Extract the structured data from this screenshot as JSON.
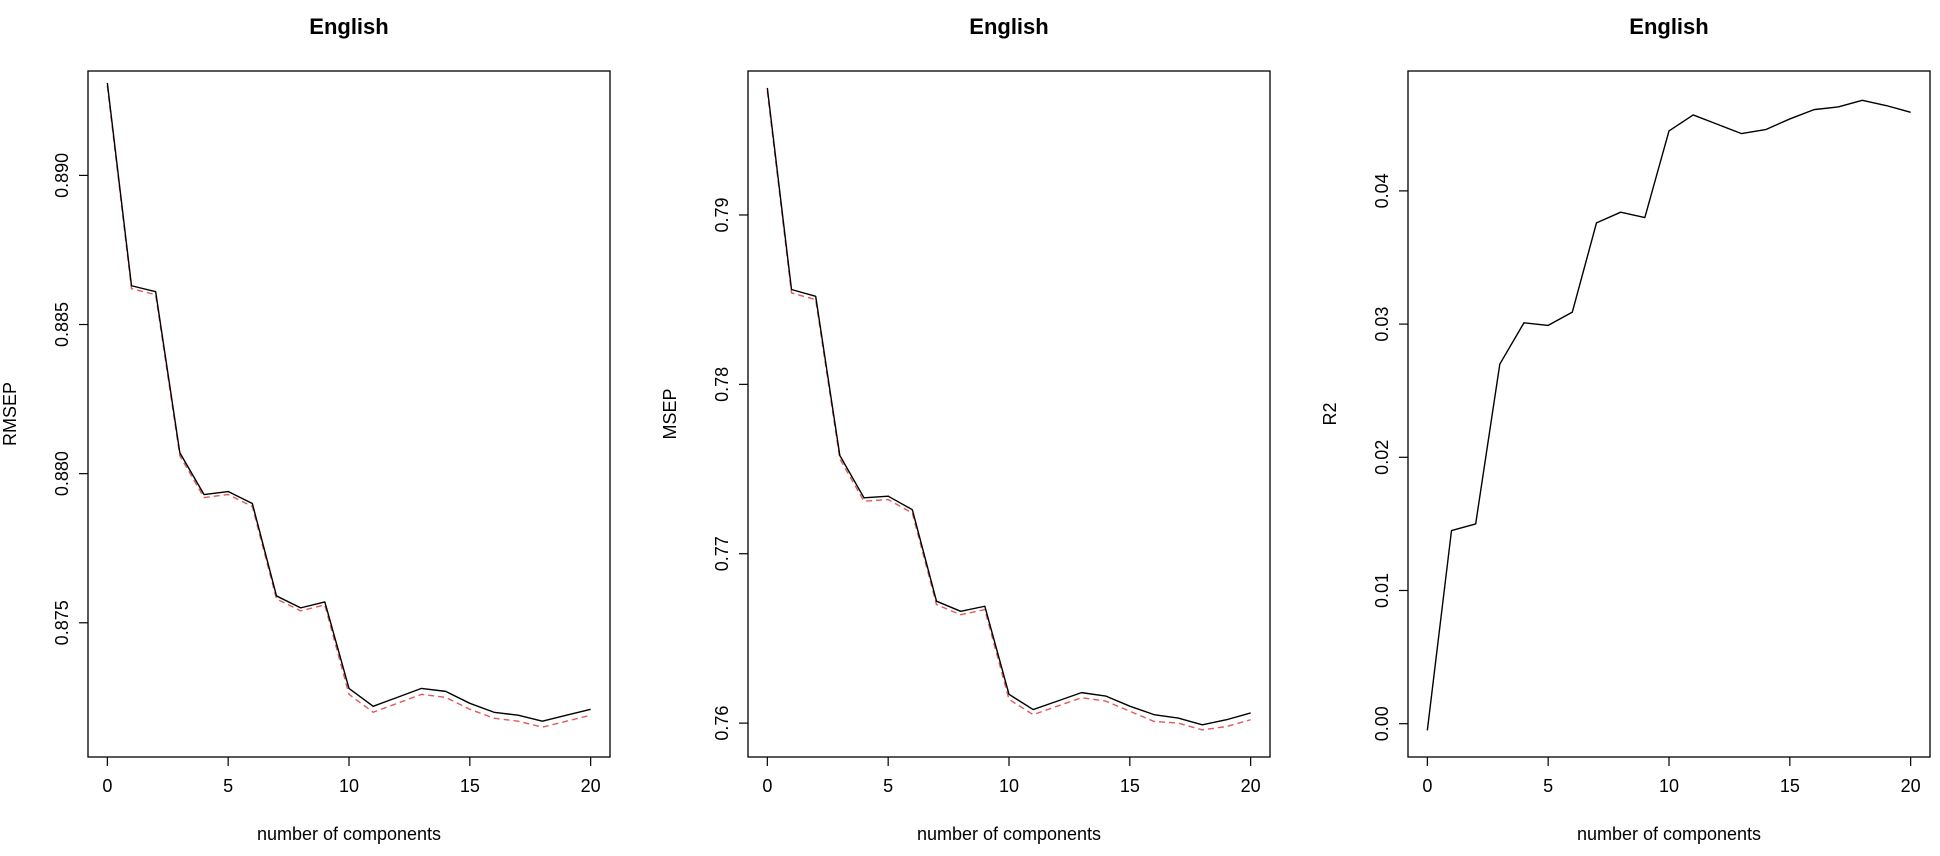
{
  "chart_data": [
    {
      "type": "line",
      "title": "English",
      "xlabel": "number of components",
      "ylabel": "RMSEP",
      "xlim": [
        0,
        20
      ],
      "ylim": [
        0.8705,
        0.8935
      ],
      "xticks": [
        0,
        5,
        10,
        15,
        20
      ],
      "xtick_labels": [
        "0",
        "5",
        "10",
        "15",
        "20"
      ],
      "yticks": [
        0.875,
        0.88,
        0.885,
        0.89
      ],
      "ytick_labels": [
        "0.875",
        "0.880",
        "0.885",
        "0.890"
      ],
      "grid": false,
      "x": [
        0,
        1,
        2,
        3,
        4,
        5,
        6,
        7,
        8,
        9,
        10,
        11,
        12,
        13,
        14,
        15,
        16,
        17,
        18,
        19,
        20
      ],
      "series": [
        {
          "style": "solid",
          "color": "#000000",
          "values": [
            0.8931,
            0.8863,
            0.8861,
            0.8807,
            0.8793,
            0.8794,
            0.879,
            0.8759,
            0.8755,
            0.8757,
            0.8728,
            0.8722,
            0.8725,
            0.8728,
            0.8727,
            0.8723,
            0.872,
            0.8719,
            0.8717,
            0.8719,
            0.8721
          ]
        },
        {
          "style": "dashed",
          "color": "#e05a5a",
          "values": [
            0.893,
            0.8862,
            0.886,
            0.8806,
            0.8792,
            0.8793,
            0.8789,
            0.8758,
            0.8754,
            0.8756,
            0.8726,
            0.872,
            0.8723,
            0.8726,
            0.8725,
            0.8721,
            0.8718,
            0.8717,
            0.8715,
            0.8717,
            0.8719
          ]
        }
      ]
    },
    {
      "type": "line",
      "title": "English",
      "xlabel": "number of components",
      "ylabel": "MSEP",
      "xlim": [
        0,
        20
      ],
      "ylim": [
        0.758,
        0.7985
      ],
      "xticks": [
        0,
        5,
        10,
        15,
        20
      ],
      "xtick_labels": [
        "0",
        "5",
        "10",
        "15",
        "20"
      ],
      "yticks": [
        0.76,
        0.77,
        0.78,
        0.79
      ],
      "ytick_labels": [
        "0.76",
        "0.77",
        "0.78",
        "0.79"
      ],
      "grid": false,
      "x": [
        0,
        1,
        2,
        3,
        4,
        5,
        6,
        7,
        8,
        9,
        10,
        11,
        12,
        13,
        14,
        15,
        16,
        17,
        18,
        19,
        20
      ],
      "series": [
        {
          "style": "solid",
          "color": "#000000",
          "values": [
            0.7975,
            0.7856,
            0.7852,
            0.7758,
            0.7733,
            0.7734,
            0.7726,
            0.7672,
            0.7666,
            0.7669,
            0.7617,
            0.7608,
            0.7613,
            0.7618,
            0.7616,
            0.761,
            0.7605,
            0.7603,
            0.7599,
            0.7602,
            0.7606
          ]
        },
        {
          "style": "dashed",
          "color": "#e05a5a",
          "values": [
            0.7973,
            0.7854,
            0.785,
            0.7756,
            0.7731,
            0.7732,
            0.7724,
            0.767,
            0.7664,
            0.7667,
            0.7614,
            0.7605,
            0.761,
            0.7615,
            0.7613,
            0.7607,
            0.7601,
            0.76,
            0.7596,
            0.7598,
            0.7602
          ]
        }
      ]
    },
    {
      "type": "line",
      "title": "English",
      "xlabel": "number of components",
      "ylabel": "R2",
      "xlim": [
        0,
        20
      ],
      "ylim": [
        -0.0025,
        0.049
      ],
      "xticks": [
        0,
        5,
        10,
        15,
        20
      ],
      "xtick_labels": [
        "0",
        "5",
        "10",
        "15",
        "20"
      ],
      "yticks": [
        0.0,
        0.01,
        0.02,
        0.03,
        0.04
      ],
      "ytick_labels": [
        "0.00",
        "0.01",
        "0.02",
        "0.03",
        "0.04"
      ],
      "grid": false,
      "x": [
        0,
        1,
        2,
        3,
        4,
        5,
        6,
        7,
        8,
        9,
        10,
        11,
        12,
        13,
        14,
        15,
        16,
        17,
        18,
        19,
        20
      ],
      "series": [
        {
          "style": "solid",
          "color": "#000000",
          "values": [
            -0.0005,
            0.0145,
            0.015,
            0.027,
            0.0301,
            0.0299,
            0.0309,
            0.0376,
            0.0384,
            0.038,
            0.0445,
            0.0457,
            0.045,
            0.0443,
            0.0446,
            0.0454,
            0.0461,
            0.0463,
            0.0468,
            0.0464,
            0.0459
          ]
        }
      ]
    }
  ]
}
